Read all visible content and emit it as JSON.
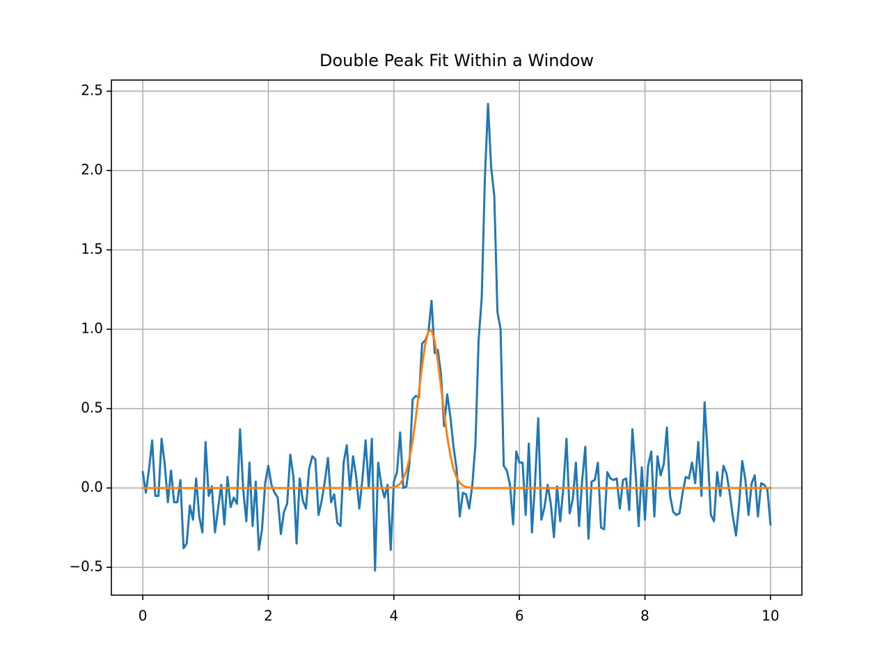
{
  "chart_data": {
    "type": "line",
    "title": "Double Peak Fit Within a Window",
    "x": [
      0,
      0.05,
      0.1,
      0.15,
      0.2,
      0.25,
      0.3,
      0.35,
      0.4,
      0.45,
      0.5,
      0.55,
      0.6,
      0.65,
      0.7,
      0.75,
      0.8,
      0.85,
      0.9,
      0.95,
      1,
      1.05,
      1.1,
      1.15,
      1.2,
      1.25,
      1.3,
      1.35,
      1.4,
      1.45,
      1.5,
      1.55,
      1.6,
      1.65,
      1.7,
      1.75,
      1.8,
      1.85,
      1.9,
      1.95,
      2,
      2.05,
      2.1,
      2.15,
      2.2,
      2.25,
      2.3,
      2.35,
      2.4,
      2.45,
      2.5,
      2.55,
      2.6,
      2.65,
      2.7,
      2.75,
      2.8,
      2.85,
      2.9,
      2.95,
      3,
      3.05,
      3.1,
      3.15,
      3.2,
      3.25,
      3.3,
      3.35,
      3.4,
      3.45,
      3.5,
      3.55,
      3.6,
      3.65,
      3.7,
      3.75,
      3.8,
      3.85,
      3.9,
      3.95,
      4,
      4.05,
      4.1,
      4.15,
      4.2,
      4.25,
      4.3,
      4.35,
      4.4,
      4.45,
      4.5,
      4.55,
      4.6,
      4.65,
      4.7,
      4.75,
      4.8,
      4.85,
      4.9,
      4.95,
      5,
      5.05,
      5.1,
      5.15,
      5.2,
      5.25,
      5.3,
      5.35,
      5.4,
      5.45,
      5.5,
      5.55,
      5.6,
      5.65,
      5.7,
      5.75,
      5.8,
      5.85,
      5.9,
      5.95,
      6,
      6.05,
      6.1,
      6.15,
      6.2,
      6.25,
      6.3,
      6.35,
      6.4,
      6.45,
      6.5,
      6.55,
      6.6,
      6.65,
      6.7,
      6.75,
      6.8,
      6.85,
      6.9,
      6.95,
      7,
      7.05,
      7.1,
      7.15,
      7.2,
      7.25,
      7.3,
      7.35,
      7.4,
      7.45,
      7.5,
      7.55,
      7.6,
      7.65,
      7.7,
      7.75,
      7.8,
      7.85,
      7.9,
      7.95,
      8,
      8.05,
      8.1,
      8.15,
      8.2,
      8.25,
      8.3,
      8.35,
      8.4,
      8.45,
      8.5,
      8.55,
      8.6,
      8.65,
      8.7,
      8.75,
      8.8,
      8.85,
      8.9,
      8.95,
      9,
      9.05,
      9.1,
      9.15,
      9.2,
      9.25,
      9.3,
      9.35,
      9.4,
      9.45,
      9.5,
      9.55,
      9.6,
      9.65,
      9.7,
      9.75,
      9.8,
      9.85,
      9.9,
      9.95,
      10
    ],
    "series": [
      {
        "color": "#1f77b4",
        "values": [
          0.1,
          -0.03,
          0.12,
          0.3,
          -0.05,
          -0.05,
          0.31,
          0.15,
          -0.09,
          0.11,
          -0.09,
          -0.09,
          0.05,
          -0.38,
          -0.35,
          -0.11,
          -0.2,
          0.06,
          -0.18,
          -0.28,
          0.29,
          -0.05,
          0.01,
          -0.28,
          -0.13,
          0.02,
          -0.23,
          0.07,
          -0.12,
          -0.06,
          -0.1,
          0.37,
          -0.01,
          -0.21,
          0.16,
          -0.24,
          0.04,
          -0.39,
          -0.26,
          0.03,
          0.14,
          0.02,
          -0.03,
          -0.06,
          -0.29,
          -0.15,
          -0.1,
          0.21,
          0.07,
          -0.35,
          0.06,
          -0.08,
          -0.13,
          0.12,
          0.2,
          0.18,
          -0.17,
          -0.08,
          0.04,
          0.19,
          -0.09,
          -0.04,
          -0.22,
          -0.24,
          0.16,
          0.27,
          -0.01,
          0.2,
          0.07,
          -0.13,
          0.06,
          0.3,
          0.0,
          0.31,
          -0.52,
          0.16,
          0.02,
          -0.06,
          0.02,
          -0.39,
          0.04,
          0.1,
          0.35,
          0.0,
          0.01,
          0.16,
          0.56,
          0.58,
          0.57,
          0.91,
          0.93,
          0.98,
          1.18,
          0.85,
          0.87,
          0.72,
          0.39,
          0.59,
          0.45,
          0.26,
          0.12,
          -0.18,
          -0.03,
          -0.04,
          -0.13,
          0.02,
          0.28,
          0.93,
          1.2,
          1.95,
          2.42,
          2.02,
          1.84,
          1.11,
          1.0,
          0.14,
          0.11,
          0.02,
          -0.23,
          0.23,
          0.16,
          0.16,
          -0.17,
          0.28,
          -0.28,
          0.04,
          0.44,
          -0.2,
          -0.12,
          0.02,
          -0.1,
          -0.31,
          0.01,
          -0.21,
          0.0,
          0.31,
          -0.16,
          -0.07,
          0.16,
          -0.24,
          0.05,
          0.26,
          -0.32,
          0.04,
          0.05,
          0.16,
          -0.25,
          -0.26,
          0.1,
          0.06,
          0.05,
          0.06,
          -0.13,
          0.05,
          0.06,
          -0.14,
          0.37,
          0.1,
          -0.24,
          0.13,
          -0.2,
          0.14,
          0.23,
          -0.18,
          0.2,
          0.08,
          0.15,
          0.38,
          -0.05,
          -0.15,
          -0.17,
          -0.16,
          -0.03,
          0.07,
          0.06,
          0.16,
          0.03,
          0.29,
          -0.05,
          0.54,
          0.21,
          -0.17,
          -0.21,
          0.1,
          -0.05,
          0.14,
          0.09,
          -0.03,
          -0.18,
          -0.3,
          -0.1,
          0.17,
          0.05,
          -0.17,
          0.03,
          0.08,
          -0.18,
          0.03,
          0.02,
          -0.01,
          -0.23
        ]
      },
      {
        "color": "#ff7f0e",
        "values": [
          0,
          0,
          0,
          0,
          0,
          0,
          0,
          0,
          0,
          0,
          0,
          0,
          0,
          0,
          0,
          0,
          0,
          0,
          0,
          0,
          0,
          0,
          0,
          0,
          0,
          0,
          0,
          0,
          0,
          0,
          0,
          0,
          0,
          0,
          0,
          0,
          0,
          0,
          0,
          0,
          0,
          0,
          0,
          0,
          0,
          0,
          0,
          0,
          0,
          0,
          0,
          0,
          0,
          0,
          0,
          0,
          0,
          0,
          0,
          0,
          0,
          0,
          0,
          0,
          0,
          0,
          0,
          0,
          0,
          0,
          0,
          0,
          0,
          0,
          0,
          0,
          0,
          0,
          0,
          0.002,
          0.006,
          0.013,
          0.028,
          0.058,
          0.108,
          0.186,
          0.298,
          0.442,
          0.607,
          0.77,
          0.906,
          0.986,
          0.994,
          0.927,
          0.801,
          0.64,
          0.474,
          0.325,
          0.206,
          0.121,
          0.066,
          0.033,
          0.015,
          0.007,
          0.003,
          0,
          0,
          0,
          0,
          0,
          0,
          0,
          0,
          0,
          0,
          0,
          0,
          0,
          0,
          0,
          0,
          0,
          0,
          0,
          0,
          0,
          0,
          0,
          0,
          0,
          0,
          0,
          0,
          0,
          0,
          0,
          0,
          0,
          0,
          0,
          0,
          0,
          0,
          0,
          0,
          0,
          0,
          0,
          0,
          0,
          0,
          0,
          0,
          0,
          0,
          0,
          0,
          0,
          0,
          0,
          0,
          0,
          0,
          0,
          0,
          0,
          0,
          0,
          0,
          0,
          0,
          0,
          0,
          0,
          0,
          0,
          0,
          0,
          0,
          0,
          0,
          0,
          0,
          0,
          0,
          0,
          0,
          0,
          0,
          0,
          0,
          0,
          0,
          0,
          0,
          0,
          0,
          0,
          0,
          0,
          0
        ]
      }
    ],
    "xlim": [
      -0.5,
      10.5
    ],
    "xticks": [
      0,
      2,
      4,
      6,
      8,
      10
    ],
    "ylim": [
      -0.675,
      2.57
    ],
    "yticks": [
      {
        "value": -0.5,
        "label": "−0.5"
      },
      {
        "value": 0,
        "label": "0.0"
      },
      0.5,
      {
        "value": 1,
        "label": "1.0"
      },
      1.5,
      {
        "value": 2,
        "label": "2.0"
      },
      2.5
    ],
    "grid": true
  }
}
